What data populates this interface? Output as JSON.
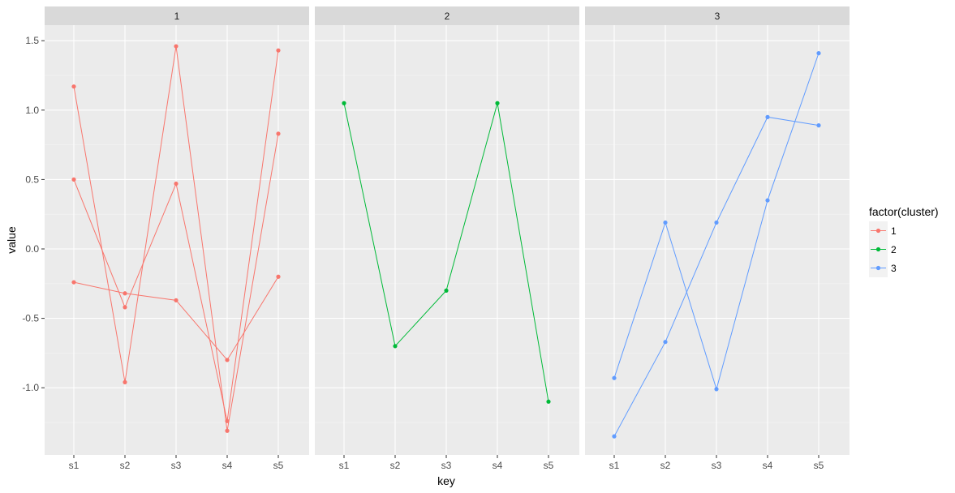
{
  "chart_data": {
    "type": "line",
    "facet_variable": "cluster",
    "xlabel": "key",
    "ylabel": "value",
    "categories": [
      "s1",
      "s2",
      "s3",
      "s4",
      "s5"
    ],
    "y_ticks": [
      "1.5",
      "1.0",
      "0.5",
      "0.0",
      "-0.5",
      "-1.0"
    ],
    "y_tick_values": [
      1.5,
      1.0,
      0.5,
      0.0,
      -0.5,
      -1.0
    ],
    "ylim": [
      -1.5,
      1.6
    ],
    "grid": true,
    "legend": {
      "title": "factor(cluster)",
      "position": "right",
      "entries": [
        "1",
        "2",
        "3"
      ]
    },
    "colors": {
      "1": "#F8766D",
      "2": "#00BA38",
      "3": "#619CFF",
      "panel_bg": "#EBEBEB",
      "strip_bg": "#D9D9D9",
      "grid_major": "#FFFFFF"
    },
    "panels": [
      {
        "label": "1",
        "cluster": "1",
        "series": [
          {
            "values": [
              1.17,
              -0.96,
              1.46,
              -1.31,
              0.83
            ]
          },
          {
            "values": [
              0.5,
              -0.42,
              0.47,
              -1.24,
              1.43
            ]
          },
          {
            "values": [
              -0.24,
              -0.32,
              -0.37,
              -0.8,
              -0.2
            ]
          }
        ]
      },
      {
        "label": "2",
        "cluster": "2",
        "series": [
          {
            "values": [
              1.05,
              -0.7,
              -0.3,
              1.05,
              -1.1
            ]
          }
        ]
      },
      {
        "label": "3",
        "cluster": "3",
        "series": [
          {
            "values": [
              -0.93,
              0.19,
              -1.01,
              0.35,
              1.41
            ]
          },
          {
            "values": [
              -1.35,
              -0.67,
              0.19,
              0.95,
              0.89
            ]
          }
        ]
      }
    ]
  }
}
